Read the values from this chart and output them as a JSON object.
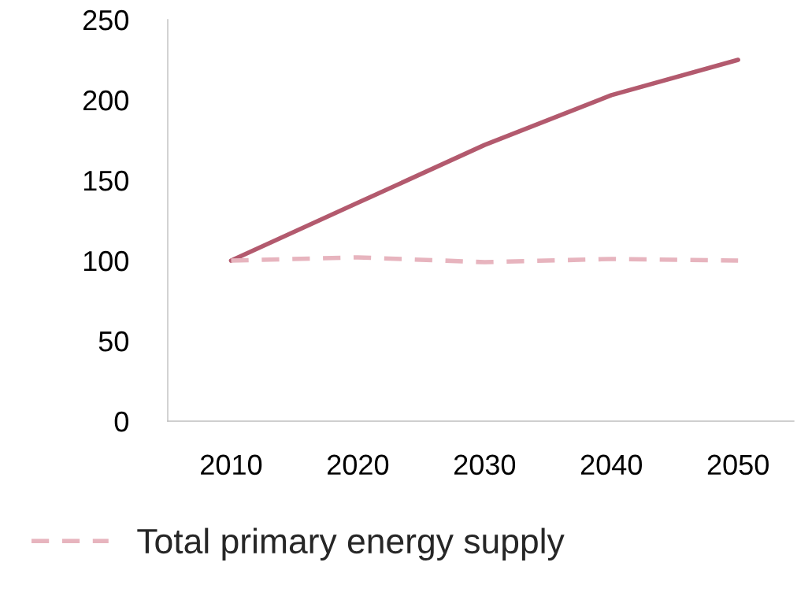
{
  "chart_data": {
    "type": "line",
    "categories": [
      "2010",
      "2020",
      "2030",
      "2040",
      "2050"
    ],
    "series": [
      {
        "color": "#b35a6e",
        "values": [
          100,
          136,
          172,
          203,
          225
        ],
        "line_style": "solid"
      },
      {
        "name": "Total primary energy supply",
        "color": "#e7b4be",
        "values": [
          100,
          102,
          99,
          101,
          100
        ],
        "line_style": "dashed"
      }
    ],
    "ylim": [
      0,
      250
    ],
    "yticks": [
      0,
      50,
      100,
      150,
      200,
      250
    ],
    "grid": false,
    "legend": "bottom left",
    "marker": "none"
  }
}
